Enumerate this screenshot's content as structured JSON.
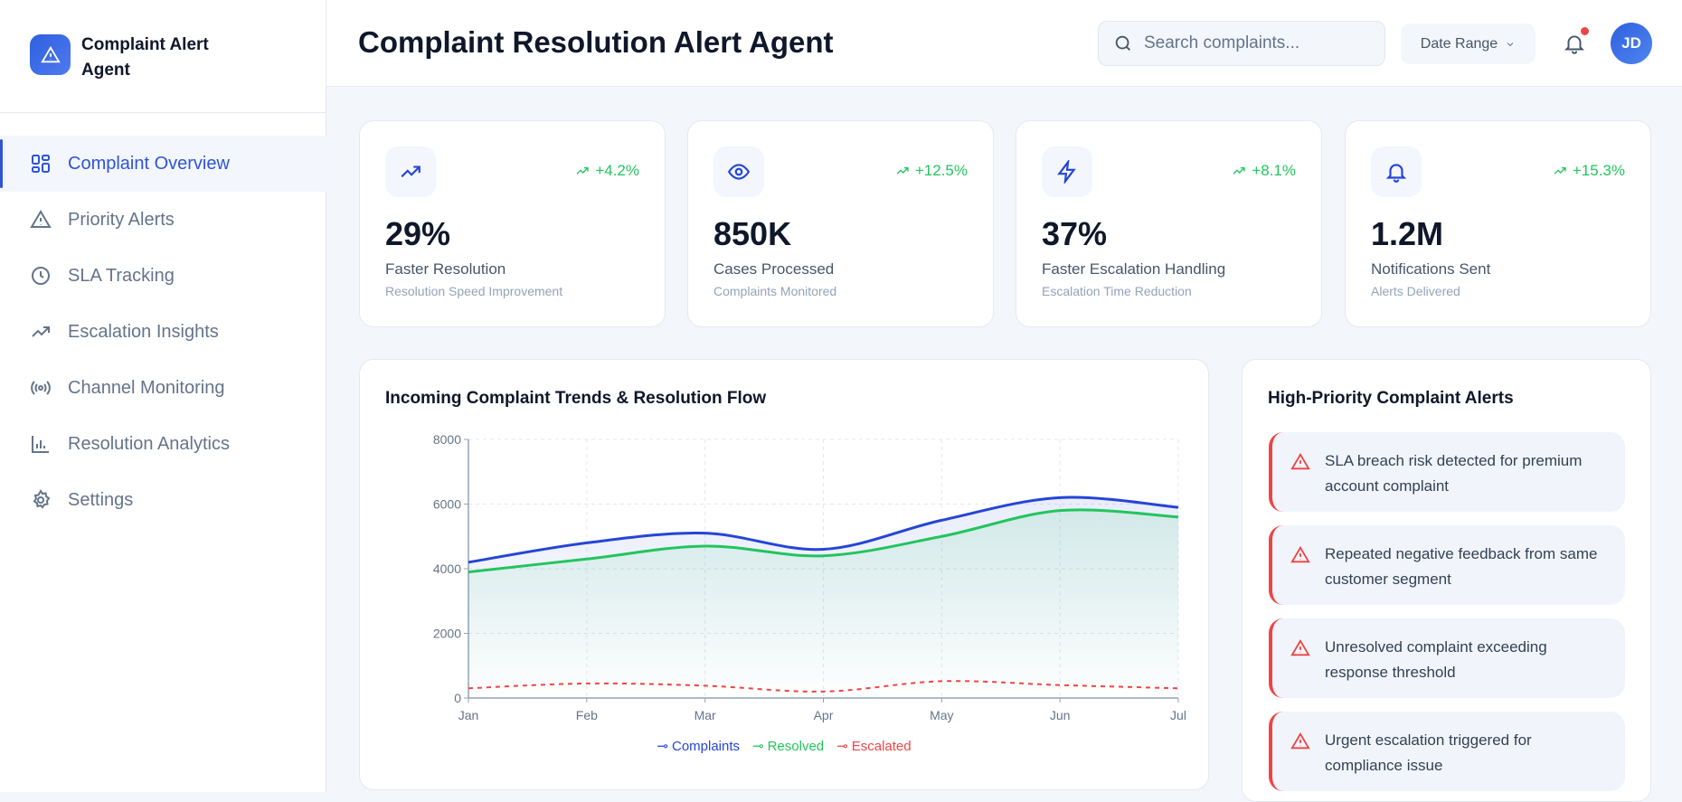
{
  "sidebar": {
    "brand": "Complaint Alert Agent",
    "items": [
      {
        "label": "Complaint Overview",
        "icon": "grid-icon",
        "active": true
      },
      {
        "label": "Priority Alerts",
        "icon": "alert-triangle-icon"
      },
      {
        "label": "SLA Tracking",
        "icon": "clock-icon"
      },
      {
        "label": "Escalation Insights",
        "icon": "trending-up-icon"
      },
      {
        "label": "Channel Monitoring",
        "icon": "broadcast-icon"
      },
      {
        "label": "Resolution Analytics",
        "icon": "bar-chart-icon"
      },
      {
        "label": "Settings",
        "icon": "gear-icon"
      }
    ]
  },
  "header": {
    "title": "Complaint Resolution Alert Agent",
    "search_placeholder": "Search complaints...",
    "date_range": "Date Range",
    "avatar": "JD"
  },
  "stats": [
    {
      "icon": "trending-up-icon",
      "trend": "+4.2%",
      "value": "29%",
      "label": "Faster Resolution",
      "sub": "Resolution Speed Improvement"
    },
    {
      "icon": "eye-icon",
      "trend": "+12.5%",
      "value": "850K",
      "label": "Cases Processed",
      "sub": "Complaints Monitored"
    },
    {
      "icon": "lightning-icon",
      "trend": "+8.1%",
      "value": "37%",
      "label": "Faster Escalation Handling",
      "sub": "Escalation Time Reduction"
    },
    {
      "icon": "bell-icon",
      "trend": "+15.3%",
      "value": "1.2M",
      "label": "Notifications Sent",
      "sub": "Alerts Delivered"
    }
  ],
  "chart_data": {
    "type": "area",
    "title": "Incoming Complaint Trends & Resolution Flow",
    "categories": [
      "Jan",
      "Feb",
      "Mar",
      "Apr",
      "May",
      "Jun",
      "Jul"
    ],
    "ylim": [
      0,
      8000
    ],
    "yticks": [
      "0",
      "2000",
      "4000",
      "6000",
      "8000"
    ],
    "grid": true,
    "legend": "bottom",
    "series": [
      {
        "name": "Complaints",
        "color": "#2545d6",
        "values": [
          4200,
          4800,
          5100,
          4600,
          5500,
          6200,
          5900
        ]
      },
      {
        "name": "Resolved",
        "color": "#22c55e",
        "values": [
          3900,
          4300,
          4700,
          4400,
          5000,
          5800,
          5600
        ]
      },
      {
        "name": "Escalated",
        "color": "#ef4444",
        "values": [
          300,
          450,
          380,
          200,
          520,
          400,
          300
        ],
        "dashed": true
      }
    ]
  },
  "alerts": {
    "title": "High-Priority Complaint Alerts",
    "items": [
      "SLA breach risk detected for premium account complaint",
      "Repeated negative feedback from same customer segment",
      "Unresolved complaint exceeding response threshold",
      "Urgent escalation triggered for compliance issue"
    ]
  }
}
